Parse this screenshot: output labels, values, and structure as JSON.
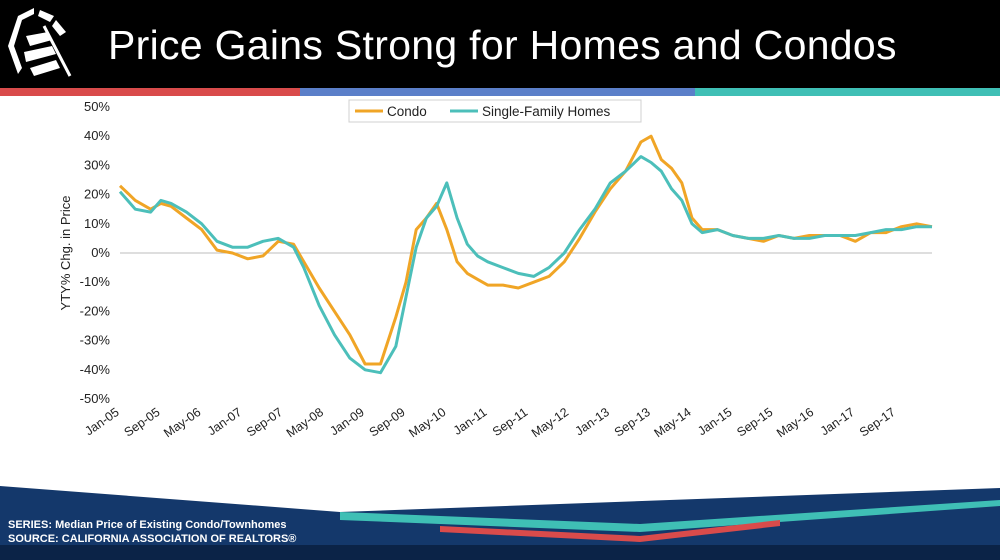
{
  "slide": {
    "title": "Price Gains Strong for Homes and Condos",
    "source_line1": "SERIES: Median Price of Existing Condo/Townhomes",
    "source_line2": "SOURCE:  CALIFORNIA ASSOCIATION OF REALTORS®",
    "logo_icon": "car-logo-icon"
  },
  "colors": {
    "header": "#000000",
    "stripe_red": "#d94b4b",
    "stripe_blue": "#5b7fc9",
    "stripe_teal": "#3fbfb5",
    "footer_navy": "#14386b",
    "condo": "#f0a526",
    "sfh": "#4cbfba"
  },
  "chart_data": {
    "type": "line",
    "title": "",
    "xlabel": "",
    "ylabel": "YTY% Chg. in Price",
    "ylim": [
      -50,
      50
    ],
    "yticks": [
      -50,
      -40,
      -30,
      -20,
      -10,
      0,
      10,
      20,
      30,
      40,
      50
    ],
    "ytick_labels": [
      "-50%",
      "-40%",
      "-30%",
      "-20%",
      "-10%",
      "0%",
      "10%",
      "20%",
      "30%",
      "40%",
      "50%"
    ],
    "x_start": "Jan-05",
    "x_end": "Apr-18",
    "xtick_labels": [
      "Jan-05",
      "Sep-05",
      "May-06",
      "Jan-07",
      "Sep-07",
      "May-08",
      "Jan-09",
      "Sep-09",
      "May-10",
      "Jan-11",
      "Sep-11",
      "May-12",
      "Jan-13",
      "Sep-13",
      "May-14",
      "Jan-15",
      "Sep-15",
      "May-16",
      "Jan-17",
      "Sep-17"
    ],
    "legend": "top-center",
    "grid": false,
    "series": [
      {
        "name": "Condo",
        "points": [
          [
            "Jan-05",
            23
          ],
          [
            "Apr-05",
            18
          ],
          [
            "Jul-05",
            15
          ],
          [
            "Sep-05",
            17
          ],
          [
            "Nov-05",
            16
          ],
          [
            "Feb-06",
            12
          ],
          [
            "May-06",
            8
          ],
          [
            "Aug-06",
            1
          ],
          [
            "Nov-06",
            0
          ],
          [
            "Feb-07",
            -2
          ],
          [
            "May-07",
            -1
          ],
          [
            "Aug-07",
            4
          ],
          [
            "Nov-07",
            3
          ],
          [
            "Jan-08",
            -3
          ],
          [
            "Apr-08",
            -12
          ],
          [
            "Jul-08",
            -20
          ],
          [
            "Oct-08",
            -28
          ],
          [
            "Jan-09",
            -38
          ],
          [
            "Apr-09",
            -38
          ],
          [
            "Jul-09",
            -22
          ],
          [
            "Sep-09",
            -10
          ],
          [
            "Nov-09",
            8
          ],
          [
            "Jan-10",
            12
          ],
          [
            "Mar-10",
            17
          ],
          [
            "May-10",
            8
          ],
          [
            "Jul-10",
            -3
          ],
          [
            "Sep-10",
            -7
          ],
          [
            "Nov-10",
            -9
          ],
          [
            "Jan-11",
            -11
          ],
          [
            "Apr-11",
            -11
          ],
          [
            "Jul-11",
            -12
          ],
          [
            "Oct-11",
            -10
          ],
          [
            "Jan-12",
            -8
          ],
          [
            "Apr-12",
            -3
          ],
          [
            "Jul-12",
            5
          ],
          [
            "Oct-12",
            14
          ],
          [
            "Jan-13",
            22
          ],
          [
            "Apr-13",
            28
          ],
          [
            "Jul-13",
            38
          ],
          [
            "Sep-13",
            40
          ],
          [
            "Nov-13",
            32
          ],
          [
            "Jan-14",
            29
          ],
          [
            "Mar-14",
            24
          ],
          [
            "May-14",
            12
          ],
          [
            "Jul-14",
            8
          ],
          [
            "Oct-14",
            8
          ],
          [
            "Jan-15",
            6
          ],
          [
            "Apr-15",
            5
          ],
          [
            "Jul-15",
            4
          ],
          [
            "Oct-15",
            6
          ],
          [
            "Jan-16",
            5
          ],
          [
            "Apr-16",
            6
          ],
          [
            "Jul-16",
            6
          ],
          [
            "Oct-16",
            6
          ],
          [
            "Jan-17",
            4
          ],
          [
            "Apr-17",
            7
          ],
          [
            "Jul-17",
            7
          ],
          [
            "Oct-17",
            9
          ],
          [
            "Jan-18",
            10
          ],
          [
            "Apr-18",
            9
          ]
        ]
      },
      {
        "name": "Single-Family Homes",
        "points": [
          [
            "Jan-05",
            21
          ],
          [
            "Apr-05",
            15
          ],
          [
            "Jul-05",
            14
          ],
          [
            "Sep-05",
            18
          ],
          [
            "Nov-05",
            17
          ],
          [
            "Feb-06",
            14
          ],
          [
            "May-06",
            10
          ],
          [
            "Aug-06",
            4
          ],
          [
            "Nov-06",
            2
          ],
          [
            "Feb-07",
            2
          ],
          [
            "May-07",
            4
          ],
          [
            "Aug-07",
            5
          ],
          [
            "Nov-07",
            2
          ],
          [
            "Jan-08",
            -5
          ],
          [
            "Apr-08",
            -18
          ],
          [
            "Jul-08",
            -28
          ],
          [
            "Oct-08",
            -36
          ],
          [
            "Jan-09",
            -40
          ],
          [
            "Apr-09",
            -41
          ],
          [
            "Jul-09",
            -32
          ],
          [
            "Sep-09",
            -15
          ],
          [
            "Nov-09",
            2
          ],
          [
            "Jan-10",
            12
          ],
          [
            "Mar-10",
            16
          ],
          [
            "May-10",
            24
          ],
          [
            "Jul-10",
            12
          ],
          [
            "Sep-10",
            3
          ],
          [
            "Nov-10",
            -1
          ],
          [
            "Jan-11",
            -3
          ],
          [
            "Apr-11",
            -5
          ],
          [
            "Jul-11",
            -7
          ],
          [
            "Oct-11",
            -8
          ],
          [
            "Jan-12",
            -5
          ],
          [
            "Apr-12",
            0
          ],
          [
            "Jul-12",
            8
          ],
          [
            "Oct-12",
            15
          ],
          [
            "Jan-13",
            24
          ],
          [
            "Apr-13",
            28
          ],
          [
            "Jul-13",
            33
          ],
          [
            "Sep-13",
            31
          ],
          [
            "Nov-13",
            28
          ],
          [
            "Jan-14",
            22
          ],
          [
            "Mar-14",
            18
          ],
          [
            "May-14",
            10
          ],
          [
            "Jul-14",
            7
          ],
          [
            "Oct-14",
            8
          ],
          [
            "Jan-15",
            6
          ],
          [
            "Apr-15",
            5
          ],
          [
            "Jul-15",
            5
          ],
          [
            "Oct-15",
            6
          ],
          [
            "Jan-16",
            5
          ],
          [
            "Apr-16",
            5
          ],
          [
            "Jul-16",
            6
          ],
          [
            "Oct-16",
            6
          ],
          [
            "Jan-17",
            6
          ],
          [
            "Apr-17",
            7
          ],
          [
            "Jul-17",
            8
          ],
          [
            "Oct-17",
            8
          ],
          [
            "Jan-18",
            9
          ],
          [
            "Apr-18",
            9
          ]
        ]
      }
    ]
  }
}
